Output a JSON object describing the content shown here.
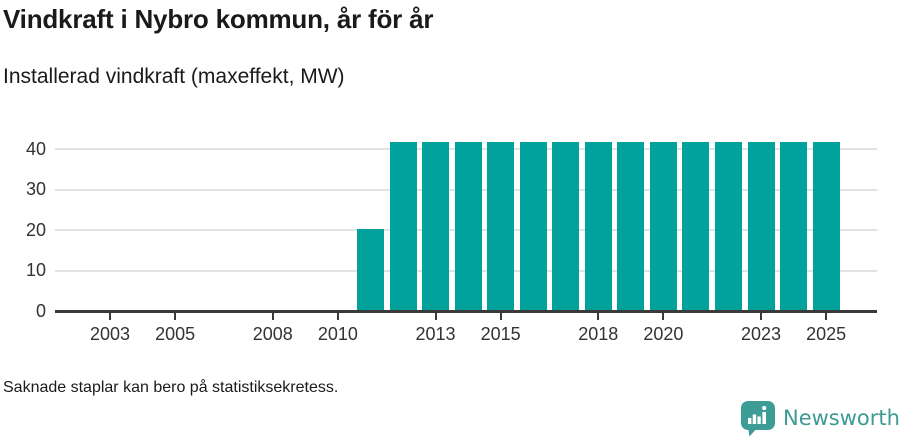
{
  "header": {
    "title": "Vindkraft i Nybro kommun, år för år",
    "subtitle": "Installerad vindkraft (maxeffekt, MW)"
  },
  "footer": {
    "note": "Saknade staplar kan bero på statistiksekretess.",
    "brand": "Newsworthy"
  },
  "colors": {
    "bar": "#00a29b",
    "axis": "#3a3a3a",
    "grid": "#e2e2e2",
    "text_dark": "#1a1a1a",
    "text_medium": "#333333",
    "brand_teal": "#3d9a93",
    "logo_bubble": "#3d9c95",
    "logo_glyph": "#ffffff"
  },
  "chart_data": {
    "type": "bar",
    "title": "Vindkraft i Nybro kommun, år för år",
    "subtitle": "Installerad vindkraft (maxeffekt, MW)",
    "unit": "MW",
    "categories": [
      2002,
      2003,
      2004,
      2005,
      2006,
      2007,
      2008,
      2009,
      2010,
      2011,
      2012,
      2013,
      2014,
      2015,
      2016,
      2017,
      2018,
      2019,
      2020,
      2021,
      2022,
      2023,
      2024,
      2025
    ],
    "values": [
      null,
      null,
      null,
      null,
      null,
      null,
      null,
      null,
      null,
      20,
      41.5,
      41.5,
      41.5,
      41.5,
      41.5,
      41.5,
      41.5,
      41.5,
      41.5,
      41.5,
      41.5,
      41.5,
      41.5,
      41.5
    ],
    "xticks": [
      2003,
      2005,
      2008,
      2010,
      2013,
      2015,
      2018,
      2020,
      2023,
      2025
    ],
    "yticks": [
      0,
      10,
      20,
      30,
      40
    ],
    "ylim": [
      0,
      45
    ],
    "xlabel": "",
    "ylabel": "",
    "grid": "horizontal",
    "legend": "none",
    "annotation": "Saknade staplar kan bero på statistiksekretess."
  }
}
